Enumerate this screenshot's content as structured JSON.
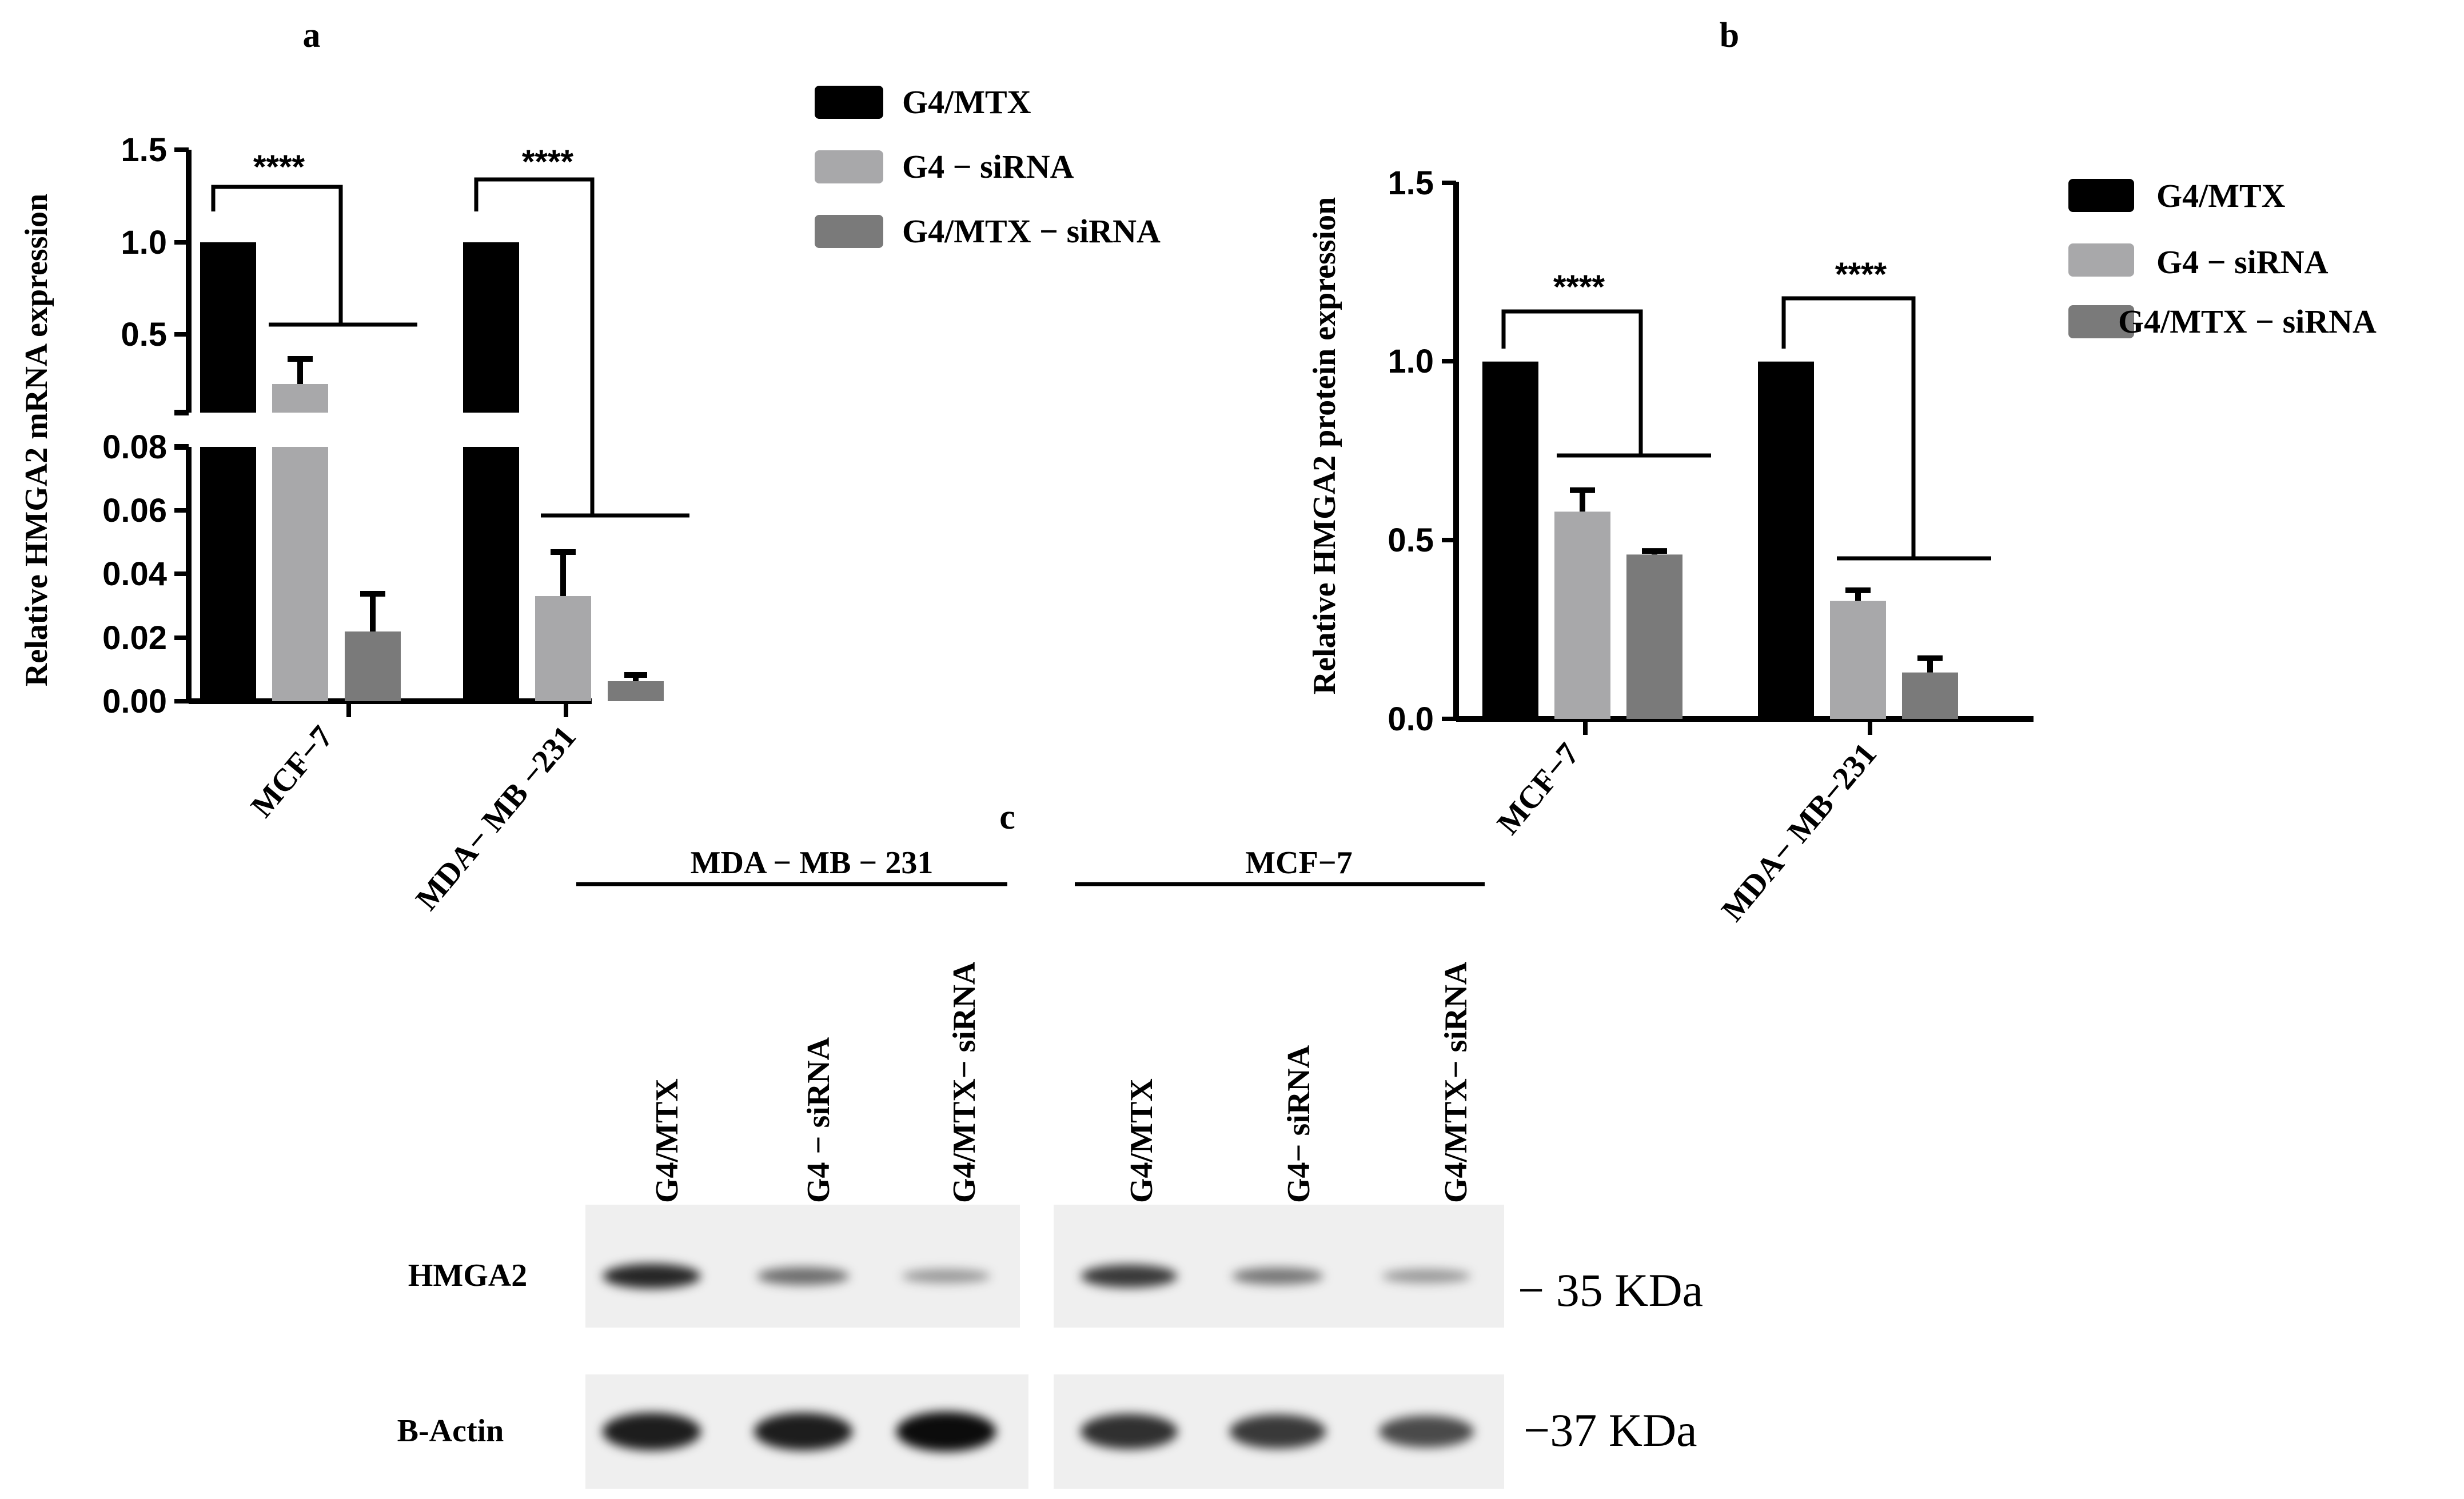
{
  "colors": {
    "g4mtx": "#000000",
    "g4sirna": "#a8a8aa",
    "g4mtxsirna": "#7a7a7a"
  },
  "panels": {
    "a": "a",
    "b": "b",
    "c": "c"
  },
  "chart_data": [
    {
      "type": "bar",
      "panel": "a",
      "ylabel": "Relative HMGA2 mRNA expression",
      "categories": [
        "MCF−7",
        "MDA− MB −231"
      ],
      "axis_break": true,
      "ylim_upper": [
        0.15,
        1.5
      ],
      "ylim_lower": [
        0,
        0.08
      ],
      "yticks_upper": [
        "1.5",
        "1.0",
        "0.5"
      ],
      "yticks_lower": [
        "0.08",
        "0.06",
        "0.04",
        "0.02",
        "0.00"
      ],
      "series": [
        {
          "name": "G4/MTX",
          "values": [
            1.0,
            1.0
          ],
          "errors": [
            0,
            0
          ]
        },
        {
          "name": "G4 − siRNA",
          "values": [
            0.2,
            0.033
          ],
          "errors": [
            0.14,
            0.014
          ]
        },
        {
          "name": "G4/MTX −  siRNA",
          "values": [
            0.022,
            0.006
          ],
          "errors": [
            0.012,
            0.002
          ]
        }
      ],
      "significance": [
        "****",
        "****"
      ],
      "legend_position": "top-right"
    },
    {
      "type": "bar",
      "panel": "b",
      "ylabel": "Relative HMGA2 protein expression",
      "categories": [
        "MCF−7",
        "MDA− MB−231"
      ],
      "ylim": [
        0,
        1.5
      ],
      "yticks": [
        "1.5",
        "1.0",
        "0.5",
        "0.0"
      ],
      "series": [
        {
          "name": "G4/MTX",
          "values": [
            1.0,
            1.0
          ],
          "errors": [
            0,
            0
          ]
        },
        {
          "name": "G4 − siRNA",
          "values": [
            0.58,
            0.33
          ],
          "errors": [
            0.06,
            0.03
          ]
        },
        {
          "name": "G4/MTX − siRNA",
          "values": [
            0.46,
            0.13
          ],
          "errors": [
            0.01,
            0.04
          ]
        }
      ],
      "significance": [
        "****",
        "****"
      ],
      "legend_position": "right"
    }
  ],
  "blot": {
    "groups": [
      {
        "label": "MDA − MB − 231",
        "lanes": [
          "G4/MTX",
          "G4 − siRNA",
          "G4/MTX− siRNA"
        ]
      },
      {
        "label": "MCF−7",
        "lanes": [
          "G4/MTX",
          "G4− siRNA",
          "G4/MTX− siRNA"
        ]
      }
    ],
    "rows": [
      {
        "label": "HMGA2",
        "size": "− 35 KDa",
        "intensity": [
          [
            0.85,
            0.45,
            0.22
          ],
          [
            0.75,
            0.4,
            0.22
          ]
        ]
      },
      {
        "label": "B-Actin",
        "size": "−37 KDa",
        "intensity": [
          [
            0.9,
            0.9,
            1.0
          ],
          [
            0.8,
            0.75,
            0.65
          ]
        ]
      }
    ]
  }
}
